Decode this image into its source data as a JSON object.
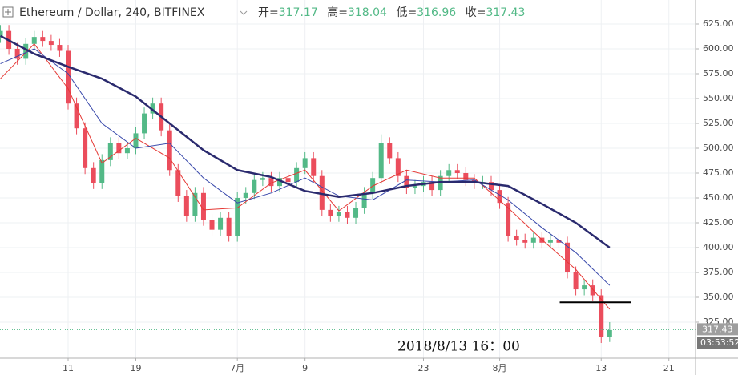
{
  "chart_data": {
    "type": "candlestick",
    "title": "Ethereum / Dollar, 240, BITFINEX",
    "header": {
      "open_label": "开=",
      "open": "317.17",
      "high_label": "高=",
      "high": "318.04",
      "low_label": "低=",
      "low": "316.96",
      "close_label": "收=",
      "close": "317.43"
    },
    "x": [
      2,
      3,
      4,
      5,
      6,
      7,
      8,
      9,
      10,
      11,
      12,
      13,
      14,
      15,
      16,
      17,
      18,
      19,
      20,
      21,
      22,
      23,
      24,
      25,
      26,
      27,
      28,
      29,
      30,
      31,
      32,
      33,
      34,
      35,
      36,
      37,
      38,
      39,
      40,
      41,
      42,
      43,
      44,
      45,
      46,
      47,
      48,
      49,
      50,
      51,
      52,
      53,
      54,
      55,
      56,
      57,
      58,
      59,
      60,
      61,
      62,
      63,
      64,
      65,
      66,
      67,
      68,
      69,
      70,
      71,
      72,
      73,
      74
    ],
    "open": [
      612,
      618,
      600,
      590,
      605,
      612,
      608,
      604,
      598,
      545,
      520,
      480,
      465,
      488,
      505,
      495,
      500,
      515,
      535,
      545,
      518,
      478,
      452,
      432,
      455,
      428,
      418,
      430,
      412,
      450,
      455,
      468,
      470,
      462,
      470,
      466,
      480,
      490,
      472,
      438,
      432,
      436,
      430,
      440,
      455,
      470,
      505,
      490,
      472,
      460,
      462,
      466,
      458,
      472,
      478,
      475,
      468,
      465,
      466,
      458,
      445,
      412,
      408,
      405,
      410,
      405,
      408,
      405,
      375,
      358,
      362,
      352,
      310
    ],
    "high": [
      624,
      624,
      606,
      611,
      618,
      618,
      614,
      610,
      604,
      551,
      526,
      486,
      494,
      511,
      511,
      506,
      521,
      541,
      551,
      551,
      524,
      484,
      458,
      461,
      461,
      434,
      436,
      436,
      456,
      461,
      474,
      476,
      476,
      476,
      476,
      486,
      496,
      496,
      478,
      444,
      442,
      442,
      446,
      461,
      476,
      514,
      511,
      496,
      478,
      468,
      472,
      472,
      478,
      484,
      484,
      481,
      474,
      472,
      472,
      464,
      451,
      418,
      414,
      416,
      416,
      414,
      414,
      411,
      381,
      368,
      368,
      358,
      325
    ],
    "low": [
      606,
      594,
      584,
      584,
      599,
      602,
      598,
      592,
      539,
      514,
      474,
      459,
      459,
      482,
      489,
      489,
      494,
      509,
      529,
      512,
      472,
      446,
      426,
      426,
      422,
      412,
      412,
      406,
      406,
      444,
      449,
      462,
      456,
      456,
      460,
      460,
      474,
      466,
      432,
      426,
      426,
      424,
      424,
      434,
      449,
      464,
      484,
      466,
      454,
      454,
      456,
      452,
      452,
      466,
      469,
      462,
      459,
      459,
      452,
      439,
      406,
      402,
      399,
      399,
      399,
      399,
      399,
      369,
      352,
      352,
      346,
      304,
      305
    ],
    "close": [
      618,
      600,
      590,
      605,
      612,
      608,
      604,
      598,
      545,
      520,
      480,
      465,
      488,
      505,
      495,
      500,
      515,
      535,
      545,
      518,
      478,
      452,
      432,
      455,
      428,
      418,
      430,
      412,
      450,
      455,
      468,
      470,
      462,
      470,
      466,
      480,
      490,
      472,
      438,
      432,
      436,
      430,
      440,
      455,
      470,
      505,
      490,
      472,
      460,
      462,
      466,
      458,
      472,
      478,
      475,
      468,
      465,
      466,
      458,
      445,
      412,
      408,
      405,
      410,
      405,
      408,
      405,
      375,
      358,
      362,
      352,
      310,
      317
    ],
    "up_color": "#53b987",
    "down_color": "#eb4d5c",
    "lines": [
      {
        "color": "#e53935",
        "width": 1,
        "x": [
          2,
          6,
          10,
          14,
          18,
          22,
          26,
          30,
          34,
          38,
          42,
          46,
          50,
          54,
          58,
          62,
          66,
          70,
          74
        ],
        "values": [
          570,
          605,
          560,
          485,
          510,
          490,
          438,
          440,
          465,
          478,
          437,
          462,
          478,
          470,
          470,
          440,
          408,
          378,
          338
        ]
      },
      {
        "color": "#3949ab",
        "width": 1,
        "x": [
          2,
          6,
          10,
          14,
          18,
          22,
          26,
          30,
          34,
          38,
          42,
          46,
          50,
          54,
          58,
          62,
          66,
          70,
          74
        ],
        "values": [
          585,
          600,
          575,
          525,
          500,
          505,
          470,
          445,
          455,
          470,
          452,
          448,
          468,
          466,
          468,
          448,
          420,
          395,
          362
        ]
      },
      {
        "color": "#2a2a6e",
        "width": 2.5,
        "x": [
          2,
          6,
          10,
          14,
          18,
          22,
          26,
          30,
          34,
          38,
          42,
          46,
          50,
          54,
          58,
          62,
          66,
          70,
          74
        ],
        "values": [
          613,
          595,
          582,
          570,
          552,
          525,
          498,
          478,
          471,
          457,
          451,
          455,
          462,
          466,
          466,
          462,
          444,
          425,
          400
        ]
      }
    ],
    "hline": {
      "value": 345,
      "x": [
        68.1,
        76.5
      ]
    },
    "annotation": "2018/8/13 16：00",
    "price_tag": {
      "value": 317.43,
      "label": "317.43"
    },
    "countdown": "03:53:52",
    "xlim": [
      1.95,
      84.15
    ],
    "xticks": [
      {
        "value": 10,
        "label": "11"
      },
      {
        "value": 18,
        "label": "19"
      },
      {
        "value": 30,
        "label": "7月"
      },
      {
        "value": 38,
        "label": "9"
      },
      {
        "value": 52,
        "label": "23"
      },
      {
        "value": 61,
        "label": "8月"
      },
      {
        "value": 73,
        "label": "13"
      },
      {
        "value": 81,
        "label": "21"
      }
    ],
    "ylim": [
      288.7,
      649.2
    ],
    "yticks": [
      {
        "value": 325,
        "label": "325.00"
      },
      {
        "value": 350,
        "label": "350.00"
      },
      {
        "value": 375,
        "label": "375.00"
      },
      {
        "value": 400,
        "label": "400.00"
      },
      {
        "value": 425,
        "label": "425.00"
      },
      {
        "value": 450,
        "label": "450.00"
      },
      {
        "value": 475,
        "label": "475.00"
      },
      {
        "value": 500,
        "label": "500.00"
      },
      {
        "value": 525,
        "label": "525.00"
      },
      {
        "value": 550,
        "label": "550.00"
      },
      {
        "value": 575,
        "label": "575.00"
      },
      {
        "value": 600,
        "label": "600.00"
      },
      {
        "value": 625,
        "label": "625.00"
      }
    ],
    "grid": true
  }
}
